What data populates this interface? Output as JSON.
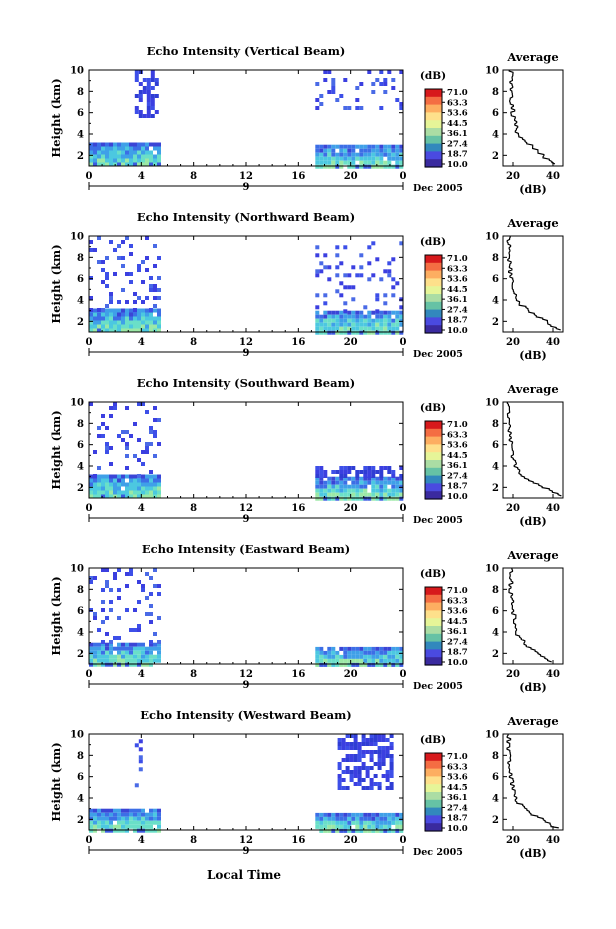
{
  "figure": {
    "xlabel": "Local Time",
    "date_label": "Dec 2005",
    "day_label": "9"
  },
  "colorbar": {
    "unit_label": "(dB)",
    "ticks": [
      "71.0",
      "63.3",
      "53.6",
      "44.5",
      "36.1",
      "27.4",
      "18.7",
      "10.0"
    ],
    "colors": [
      "#d7191c",
      "#f46d43",
      "#fdae61",
      "#fee08b",
      "#e6f598",
      "#abdda4",
      "#66c2a5",
      "#3288bd",
      "#4a4ae0",
      "#3a2a9f"
    ]
  },
  "chart_data": [
    {
      "type": "heatmap",
      "title": "Echo Intensity (Vertical Beam)",
      "ylabel": "Height (km)",
      "xlim": [
        0,
        24
      ],
      "ylim": [
        1,
        10
      ],
      "xticks": [
        "0",
        "4",
        "8",
        "12",
        "16",
        "20",
        "0"
      ],
      "yticks": [
        "2",
        "4",
        "6",
        "8",
        "10"
      ],
      "data_blocks": [
        {
          "x": [
            0,
            5.2
          ],
          "y": [
            1,
            3.2
          ],
          "level": "low-mid"
        },
        {
          "x": [
            17.3,
            24
          ],
          "y": [
            1,
            3.0
          ],
          "level": "low-mid"
        },
        {
          "x": [
            3.5,
            5.2
          ],
          "y": [
            5.5,
            10
          ],
          "level": "low"
        },
        {
          "x": [
            17.3,
            24
          ],
          "y": [
            6.5,
            10
          ],
          "level": "sparse-low"
        }
      ],
      "avg": {
        "title": "Average",
        "xlabel": "(dB)",
        "xlim": [
          15,
          45
        ],
        "xticks": [
          "20",
          "40"
        ],
        "ylim": [
          1,
          10
        ],
        "yticks": [
          "2",
          "4",
          "6",
          "8",
          "10"
        ],
        "height": [
          1.2,
          1.6,
          2.0,
          2.4,
          2.8,
          3.2,
          3.6,
          4.0,
          5.0,
          6.0,
          7.0,
          8.0,
          9.0,
          10.0
        ],
        "value": [
          42,
          38,
          35,
          33,
          30,
          27,
          24,
          22,
          21,
          20,
          19.5,
          19,
          19,
          19
        ]
      }
    },
    {
      "type": "heatmap",
      "title": "Echo Intensity (Northward Beam)",
      "ylabel": "Height (km)",
      "xlim": [
        0,
        24
      ],
      "ylim": [
        1,
        10
      ],
      "xticks": [
        "0",
        "4",
        "8",
        "12",
        "16",
        "20",
        "0"
      ],
      "yticks": [
        "2",
        "4",
        "6",
        "8",
        "10"
      ],
      "data_blocks": [
        {
          "x": [
            0,
            5.2
          ],
          "y": [
            1,
            3.2
          ],
          "level": "low-mid"
        },
        {
          "x": [
            17.3,
            24
          ],
          "y": [
            1,
            3.0
          ],
          "level": "low-mid"
        },
        {
          "x": [
            0,
            5.2
          ],
          "y": [
            3.2,
            10
          ],
          "level": "sparse-low"
        },
        {
          "x": [
            17.3,
            24
          ],
          "y": [
            3.0,
            9.5
          ],
          "level": "sparse-low"
        }
      ],
      "avg": {
        "title": "Average",
        "xlabel": "(dB)",
        "xlim": [
          15,
          45
        ],
        "xticks": [
          "20",
          "40"
        ],
        "ylim": [
          1,
          10
        ],
        "yticks": [
          "2",
          "4",
          "6",
          "8",
          "10"
        ],
        "height": [
          1.2,
          1.6,
          2.0,
          2.4,
          2.8,
          3.2,
          3.6,
          4.0,
          5.0,
          6.0,
          7.0,
          8.0,
          9.0,
          10.0
        ],
        "value": [
          43,
          40,
          37,
          33,
          30,
          27,
          24,
          22,
          20,
          19,
          18.5,
          18,
          18,
          18
        ]
      }
    },
    {
      "type": "heatmap",
      "title": "Echo Intensity (Southward Beam)",
      "ylabel": "Height (km)",
      "xlim": [
        0,
        24
      ],
      "ylim": [
        1,
        10
      ],
      "xticks": [
        "0",
        "4",
        "8",
        "12",
        "16",
        "20",
        "0"
      ],
      "yticks": [
        "2",
        "4",
        "6",
        "8",
        "10"
      ],
      "data_blocks": [
        {
          "x": [
            0,
            5.2
          ],
          "y": [
            1,
            3.2
          ],
          "level": "low-mid"
        },
        {
          "x": [
            17.3,
            24
          ],
          "y": [
            1,
            3.0
          ],
          "level": "low-mid"
        },
        {
          "x": [
            0,
            5.2
          ],
          "y": [
            3.2,
            10
          ],
          "level": "sparse-low"
        },
        {
          "x": [
            17.3,
            24
          ],
          "y": [
            3.0,
            4.0
          ],
          "level": "low"
        }
      ],
      "avg": {
        "title": "Average",
        "xlabel": "(dB)",
        "xlim": [
          15,
          45
        ],
        "xticks": [
          "20",
          "40"
        ],
        "ylim": [
          1,
          10
        ],
        "yticks": [
          "2",
          "4",
          "6",
          "8",
          "10"
        ],
        "height": [
          1.2,
          1.6,
          2.0,
          2.4,
          2.8,
          3.2,
          3.6,
          4.0,
          5.0,
          6.0,
          7.0,
          8.0,
          9.0,
          10.0
        ],
        "value": [
          44,
          40,
          36,
          32,
          28,
          25,
          23,
          21,
          20,
          19,
          18.5,
          18,
          18,
          18
        ]
      }
    },
    {
      "type": "heatmap",
      "title": "Echo Intensity (Eastward Beam)",
      "ylabel": "Height (km)",
      "xlim": [
        0,
        24
      ],
      "ylim": [
        1,
        10
      ],
      "xticks": [
        "0",
        "4",
        "8",
        "12",
        "16",
        "20",
        "0"
      ],
      "yticks": [
        "2",
        "4",
        "6",
        "8",
        "10"
      ],
      "data_blocks": [
        {
          "x": [
            0,
            5.2
          ],
          "y": [
            1,
            3.0
          ],
          "level": "low-mid"
        },
        {
          "x": [
            17.3,
            24
          ],
          "y": [
            1,
            2.6
          ],
          "level": "low-mid"
        },
        {
          "x": [
            0,
            5.2
          ],
          "y": [
            3.0,
            10
          ],
          "level": "sparse-low"
        }
      ],
      "avg": {
        "title": "Average",
        "xlabel": "(dB)",
        "xlim": [
          15,
          45
        ],
        "xticks": [
          "20",
          "40"
        ],
        "ylim": [
          1,
          10
        ],
        "yticks": [
          "2",
          "4",
          "6",
          "8",
          "10"
        ],
        "height": [
          1.2,
          1.6,
          2.0,
          2.4,
          2.8,
          3.2,
          3.6,
          4.0,
          5.0,
          6.0,
          7.0,
          8.0,
          9.0,
          10.0
        ],
        "value": [
          40,
          36,
          33,
          30,
          27,
          25,
          23,
          22,
          21,
          20,
          19.5,
          19,
          19,
          19
        ]
      }
    },
    {
      "type": "heatmap",
      "title": "Echo Intensity (Westward Beam)",
      "ylabel": "Height (km)",
      "xlim": [
        0,
        24
      ],
      "ylim": [
        1,
        10
      ],
      "xticks": [
        "0",
        "4",
        "8",
        "12",
        "16",
        "20",
        "0"
      ],
      "yticks": [
        "2",
        "4",
        "6",
        "8",
        "10"
      ],
      "data_blocks": [
        {
          "x": [
            0,
            5.2
          ],
          "y": [
            1,
            3.0
          ],
          "level": "low-mid"
        },
        {
          "x": [
            17.3,
            24
          ],
          "y": [
            1,
            2.6
          ],
          "level": "low-mid"
        },
        {
          "x": [
            3.5,
            4.0
          ],
          "y": [
            5.0,
            9.5
          ],
          "level": "sparse-low"
        },
        {
          "x": [
            19.0,
            23.0
          ],
          "y": [
            5.0,
            10
          ],
          "level": "low"
        }
      ],
      "avg": {
        "title": "Average",
        "xlabel": "(dB)",
        "xlim": [
          15,
          45
        ],
        "xticks": [
          "20",
          "40"
        ],
        "ylim": [
          1,
          10
        ],
        "yticks": [
          "2",
          "4",
          "6",
          "8",
          "10"
        ],
        "height": [
          1.2,
          1.6,
          2.0,
          2.4,
          2.8,
          3.2,
          3.6,
          4.0,
          5.0,
          6.0,
          7.0,
          8.0,
          9.0,
          10.0
        ],
        "value": [
          42,
          38,
          35,
          31,
          28,
          25,
          23,
          21,
          20,
          19,
          18.5,
          18,
          18,
          18
        ]
      }
    }
  ]
}
